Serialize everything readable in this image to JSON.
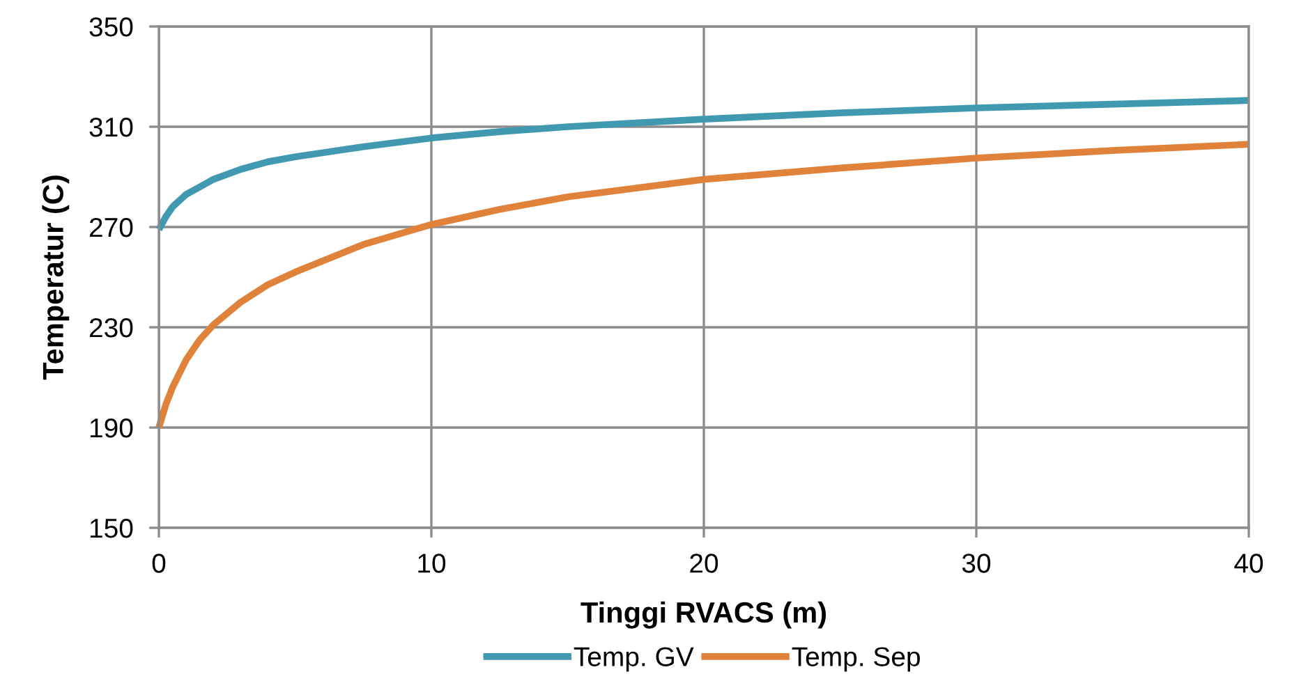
{
  "chart_data": {
    "type": "line",
    "xlabel": "Tinggi RVACS (m)",
    "ylabel": "Temperatur (C)",
    "xlim": [
      0,
      40
    ],
    "xticks": [
      0,
      10,
      20,
      30,
      40
    ],
    "ylim": [
      150,
      350
    ],
    "yticks": [
      150,
      190,
      230,
      270,
      310,
      350
    ],
    "grid": true,
    "legend": "bottom",
    "marker": "none",
    "line_style": "solid",
    "series": [
      {
        "name": "Temp. GV",
        "color": "#4099b1",
        "x": [
          0,
          0.25,
          0.5,
          1,
          1.5,
          2,
          3,
          4,
          5,
          7.5,
          10,
          12.5,
          15,
          20,
          25,
          30,
          35,
          40
        ],
        "values": [
          269,
          274,
          278,
          283,
          286,
          289,
          293,
          296,
          298,
          302,
          305.5,
          308,
          310,
          313,
          315.5,
          317.5,
          319,
          320.5
        ]
      },
      {
        "name": "Temp. Sep",
        "color": "#e0823a",
        "x": [
          0,
          0.25,
          0.5,
          1,
          1.5,
          2,
          3,
          4,
          5,
          7.5,
          10,
          12.5,
          15,
          20,
          25,
          30,
          35,
          40
        ],
        "values": [
          190,
          199,
          206,
          217,
          225,
          231,
          240,
          247,
          252,
          263,
          271,
          277,
          282,
          289,
          293.5,
          297.5,
          300.5,
          303
        ]
      }
    ]
  }
}
